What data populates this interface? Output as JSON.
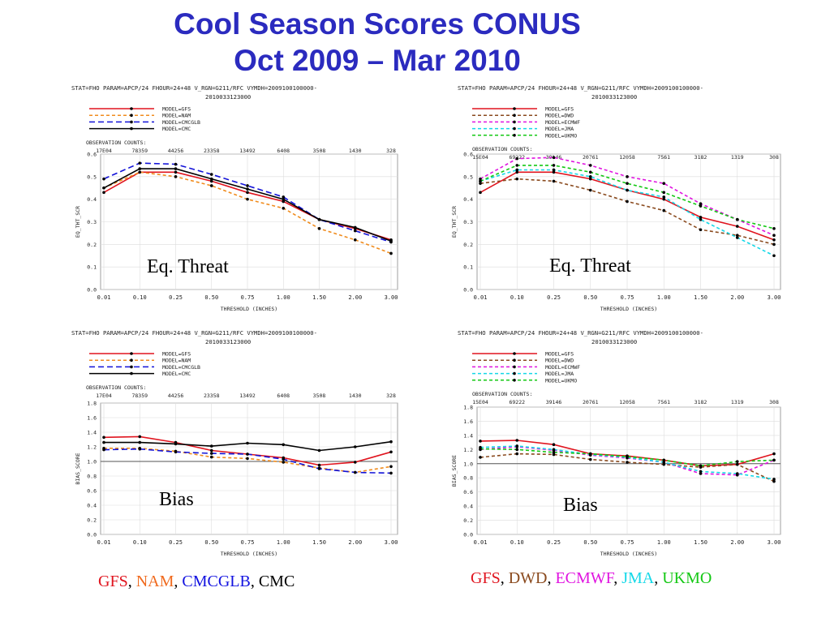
{
  "title_line1": "Cool Season Scores CONUS",
  "title_line2": "Oct 2009 – Mar 2010",
  "header_line1": "STAT=FHO PARAM=APCP/24 FHOUR=24+48 V_RGN=G211/RFC VYMDH=2009100100000-",
  "header_line2": "2010033123000",
  "thresholds": [
    "0.01",
    "0.10",
    "0.25",
    "0.50",
    "0.75",
    "1.00",
    "1.50",
    "2.00",
    "3.00"
  ],
  "xlabel": "THRESHOLD (INCHES)",
  "obs_label": "OBSERVATION COUNTS:",
  "obs_counts_left": [
    "17E04",
    "78359",
    "44256",
    "23358",
    "13492",
    "6408",
    "3508",
    "1430",
    "328"
  ],
  "obs_counts_right": [
    "15E04",
    "69222",
    "39146",
    "20761",
    "12058",
    "7561",
    "3182",
    "1319",
    "308"
  ],
  "panel_labels": {
    "eq_threat": "Eq. Threat",
    "bias": "Bias"
  },
  "footer_left": [
    {
      "text": "GFS",
      "color": "#e0141e"
    },
    {
      "text": ", ",
      "color": "#000000"
    },
    {
      "text": "NAM",
      "color": "#f06a1e"
    },
    {
      "text": ", ",
      "color": "#000000"
    },
    {
      "text": "CMCGLB",
      "color": "#1212e0"
    },
    {
      "text": ", ",
      "color": "#000000"
    },
    {
      "text": "CMC",
      "color": "#000000"
    }
  ],
  "footer_right": [
    {
      "text": "GFS",
      "color": "#e0141e"
    },
    {
      "text": ", ",
      "color": "#000000"
    },
    {
      "text": "DWD",
      "color": "#8a4a1e"
    },
    {
      "text": ", ",
      "color": "#000000"
    },
    {
      "text": "ECMWF",
      "color": "#e014e0"
    },
    {
      "text": ", ",
      "color": "#000000"
    },
    {
      "text": "JMA",
      "color": "#14d8e8"
    },
    {
      "text": ", ",
      "color": "#000000"
    },
    {
      "text": "UKMO",
      "color": "#14c814"
    }
  ],
  "chart_data": [
    {
      "type": "line",
      "ylabel": "EQ_THT_SCR",
      "ylim": [
        0,
        0.6
      ],
      "yticks": [
        "0.0",
        "0.1",
        "0.2",
        "0.3",
        "0.4",
        "0.5",
        "0.6"
      ],
      "x": [
        "0.01",
        "0.10",
        "0.25",
        "0.50",
        "0.75",
        "1.00",
        "1.50",
        "2.00",
        "3.00"
      ],
      "series": [
        {
          "name": "MODEL=GFS",
          "color": "#e0141e",
          "dash": "solid",
          "values": [
            0.43,
            0.52,
            0.52,
            0.48,
            0.43,
            0.39,
            0.31,
            0.27,
            0.22
          ]
        },
        {
          "name": "MODEL=NAM",
          "color": "#f08c1e",
          "dash": "dash",
          "values": [
            0.45,
            0.52,
            0.5,
            0.46,
            0.4,
            0.36,
            0.27,
            0.22,
            0.16
          ]
        },
        {
          "name": "MODEL=CMCGLB",
          "color": "#1212d8",
          "dash": "longdash",
          "values": [
            0.49,
            0.56,
            0.555,
            0.51,
            0.46,
            0.41,
            0.31,
            0.26,
            0.21
          ]
        },
        {
          "name": "MODEL=CMC",
          "color": "#000000",
          "dash": "solid",
          "values": [
            0.45,
            0.535,
            0.535,
            0.49,
            0.445,
            0.4,
            0.31,
            0.275,
            0.215
          ]
        }
      ]
    },
    {
      "type": "line",
      "ylabel": "EQ_THT_SCR",
      "ylim": [
        0,
        0.6
      ],
      "yticks": [
        "0.0",
        "0.1",
        "0.2",
        "0.3",
        "0.4",
        "0.5",
        "0.6"
      ],
      "x": [
        "0.01",
        "0.10",
        "0.25",
        "0.50",
        "0.75",
        "1.00",
        "1.50",
        "2.00",
        "3.00"
      ],
      "series": [
        {
          "name": "MODEL=GFS",
          "color": "#e0141e",
          "dash": "solid",
          "values": [
            0.43,
            0.52,
            0.52,
            0.49,
            0.44,
            0.4,
            0.32,
            0.28,
            0.22
          ]
        },
        {
          "name": "MODEL=DWD",
          "color": "#8a4a1e",
          "dash": "dash",
          "values": [
            0.47,
            0.49,
            0.48,
            0.44,
            0.39,
            0.35,
            0.265,
            0.24,
            0.2
          ]
        },
        {
          "name": "MODEL=ECMWF",
          "color": "#e014e0",
          "dash": "dash",
          "values": [
            0.49,
            0.58,
            0.585,
            0.55,
            0.5,
            0.47,
            0.38,
            0.31,
            0.24
          ]
        },
        {
          "name": "MODEL=JMA",
          "color": "#14d8e8",
          "dash": "dash",
          "values": [
            0.48,
            0.53,
            0.53,
            0.5,
            0.44,
            0.41,
            0.31,
            0.23,
            0.15
          ]
        },
        {
          "name": "MODEL=UKMO",
          "color": "#14c814",
          "dash": "dash",
          "values": [
            0.48,
            0.55,
            0.55,
            0.52,
            0.47,
            0.43,
            0.37,
            0.31,
            0.27
          ]
        }
      ]
    },
    {
      "type": "line",
      "ylabel": "BIAS_SCORE",
      "ylim": [
        0,
        1.8
      ],
      "yticks": [
        "0.0",
        "0.2",
        "0.4",
        "0.6",
        "0.8",
        "1.0",
        "1.2",
        "1.4",
        "1.6",
        "1.8"
      ],
      "x": [
        "0.01",
        "0.10",
        "0.25",
        "0.50",
        "0.75",
        "1.00",
        "1.50",
        "2.00",
        "3.00"
      ],
      "series": [
        {
          "name": "MODEL=GFS",
          "color": "#e0141e",
          "dash": "solid",
          "values": [
            1.33,
            1.34,
            1.26,
            1.15,
            1.1,
            1.05,
            0.95,
            0.99,
            1.13
          ]
        },
        {
          "name": "MODEL=NAM",
          "color": "#f08c1e",
          "dash": "dash",
          "values": [
            1.18,
            1.18,
            1.14,
            1.06,
            1.04,
            0.99,
            0.91,
            0.85,
            0.93
          ]
        },
        {
          "name": "MODEL=CMCGLB",
          "color": "#1212d8",
          "dash": "longdash",
          "values": [
            1.16,
            1.17,
            1.13,
            1.11,
            1.1,
            1.03,
            0.9,
            0.85,
            0.84
          ]
        },
        {
          "name": "MODEL=CMC",
          "color": "#000000",
          "dash": "solid",
          "values": [
            1.26,
            1.26,
            1.24,
            1.21,
            1.25,
            1.23,
            1.15,
            1.2,
            1.27
          ]
        }
      ]
    },
    {
      "type": "line",
      "ylabel": "BIAS_SCORE",
      "ylim": [
        0,
        1.8
      ],
      "yticks": [
        "0.0",
        "0.2",
        "0.4",
        "0.6",
        "0.8",
        "1.0",
        "1.2",
        "1.4",
        "1.6",
        "1.8"
      ],
      "x": [
        "0.01",
        "0.10",
        "0.25",
        "0.50",
        "0.75",
        "1.00",
        "1.50",
        "2.00",
        "3.00"
      ],
      "series": [
        {
          "name": "MODEL=GFS",
          "color": "#e0141e",
          "dash": "solid",
          "values": [
            1.32,
            1.33,
            1.27,
            1.14,
            1.11,
            1.05,
            0.97,
            0.99,
            1.14
          ]
        },
        {
          "name": "MODEL=DWD",
          "color": "#8a4a1e",
          "dash": "dash",
          "values": [
            1.09,
            1.14,
            1.13,
            1.06,
            1.02,
            0.99,
            0.95,
            0.99,
            0.75
          ]
        },
        {
          "name": "MODEL=ECMWF",
          "color": "#e014e0",
          "dash": "dash",
          "values": [
            1.2,
            1.24,
            1.19,
            1.12,
            1.08,
            1.02,
            0.86,
            0.84,
            1.05
          ]
        },
        {
          "name": "MODEL=JMA",
          "color": "#14d8e8",
          "dash": "dash",
          "values": [
            1.23,
            1.25,
            1.2,
            1.13,
            1.09,
            1.02,
            0.89,
            0.86,
            0.78
          ]
        },
        {
          "name": "MODEL=UKMO",
          "color": "#14c814",
          "dash": "dash",
          "values": [
            1.21,
            1.2,
            1.16,
            1.14,
            1.1,
            1.05,
            0.97,
            1.03,
            1.05
          ]
        }
      ]
    }
  ]
}
